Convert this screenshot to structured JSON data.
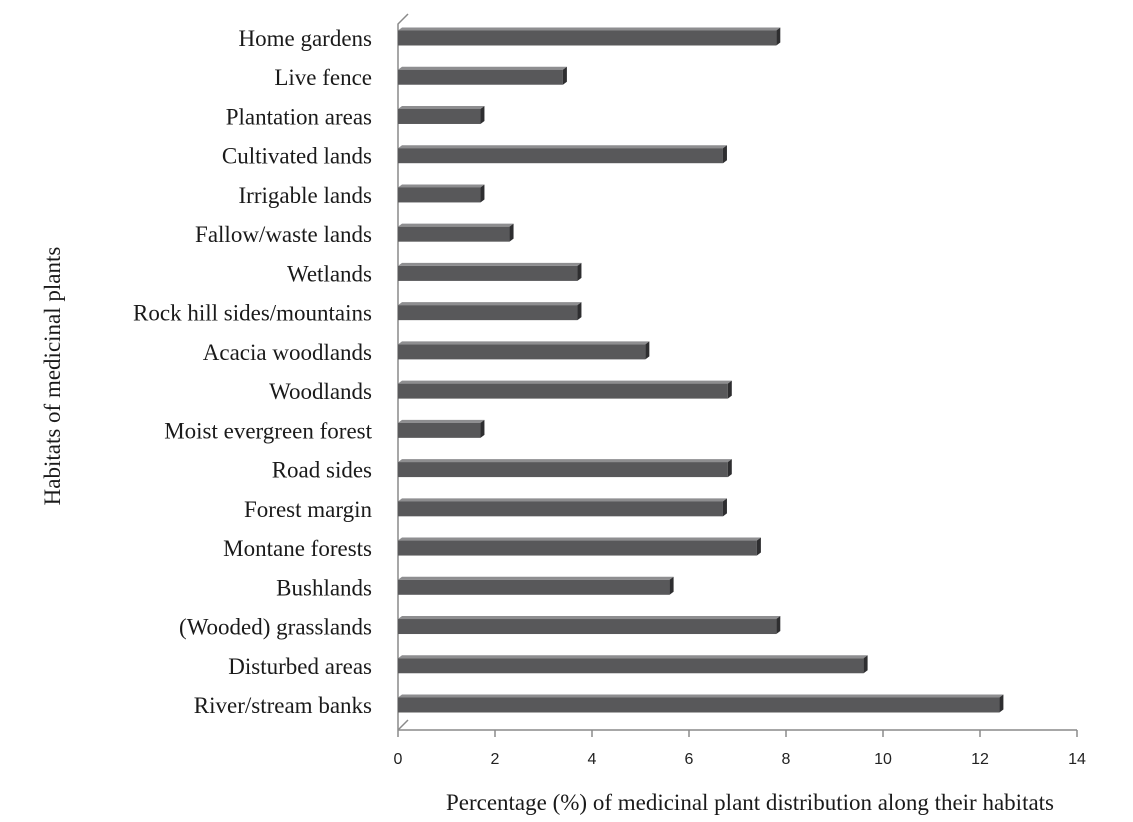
{
  "chart_data": {
    "type": "bar",
    "orientation": "horizontal",
    "title": "",
    "xlabel": "Percentage (%) of medicinal plant distribution along their  habitats",
    "ylabel": "Habitats of medicinal plants",
    "xlim": [
      0,
      14
    ],
    "xticks": [
      "0",
      "2",
      "4",
      "6",
      "8",
      "10",
      "12",
      "14"
    ],
    "grid": false,
    "legend": "none",
    "style": "3d",
    "colors": {
      "bar_front": "#58585a",
      "bar_top": "#8e8e90",
      "bar_side": "#2e2e30",
      "axis": "#8a8a8a"
    },
    "categories": [
      "Home gardens",
      "Live fence",
      "Plantation areas",
      "Cultivated lands",
      "Irrigable lands",
      "Fallow/waste lands",
      "Wetlands",
      "Rock hill sides/mountains",
      "Acacia woodlands",
      "Woodlands",
      "Moist evergreen forest",
      "Road sides",
      "Forest margin",
      "Montane forests",
      "Bushlands",
      "(Wooded) grasslands",
      "Disturbed areas",
      "River/stream banks"
    ],
    "values": [
      7.8,
      3.4,
      1.7,
      6.7,
      1.7,
      2.3,
      3.7,
      3.7,
      5.1,
      6.8,
      1.7,
      6.8,
      6.7,
      7.4,
      5.6,
      7.8,
      9.6,
      12.4
    ]
  }
}
